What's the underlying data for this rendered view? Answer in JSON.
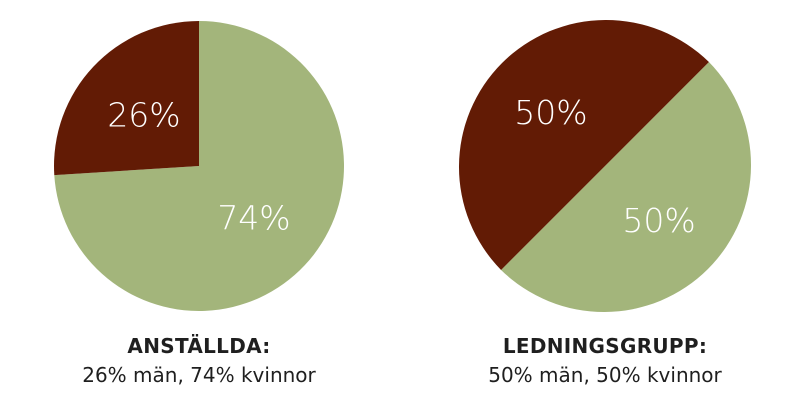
{
  "colors": {
    "men": "#621b05",
    "women": "#a3b57b",
    "label": "#ffffff"
  },
  "chart_data": [
    {
      "type": "pie",
      "categories": [
        "män",
        "kvinnor"
      ],
      "values": [
        26,
        74
      ],
      "labels": [
        "26%",
        "74%"
      ],
      "caption_title": "ANSTÄLLDA:",
      "caption_sub": "26% män, 74% kvinnor"
    },
    {
      "type": "pie",
      "categories": [
        "män",
        "kvinnor"
      ],
      "values": [
        50,
        50
      ],
      "labels": [
        "50%",
        "50%"
      ],
      "caption_title": "LEDNINGSGRUPP:",
      "caption_sub": "50% män, 50% kvinnor"
    }
  ]
}
